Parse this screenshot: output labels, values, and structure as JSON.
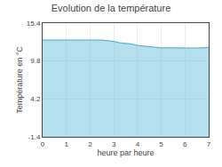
{
  "chart_data": {
    "type": "area",
    "title": "Evolution de la température",
    "xlabel": "heure par heure",
    "ylabel": "Température en °C",
    "x": [
      0,
      0.5,
      1.0,
      1.5,
      2.0,
      2.5,
      3.0,
      3.25,
      3.5,
      3.75,
      4.0,
      4.25,
      4.5,
      4.75,
      5.0,
      5.5,
      6.0,
      6.5,
      7.0
    ],
    "values": [
      12.9,
      12.9,
      12.9,
      12.9,
      12.9,
      12.9,
      12.7,
      12.5,
      12.4,
      12.3,
      12.1,
      12.0,
      11.9,
      11.8,
      11.75,
      11.75,
      11.7,
      11.7,
      11.8
    ],
    "color": "#5bb8d4",
    "xlim": [
      0,
      7
    ],
    "ylim": [
      -1.4,
      15.4
    ],
    "xticks": [
      0,
      1,
      2,
      3,
      4,
      5,
      6,
      7
    ],
    "yticks": [
      -1.4,
      4.2,
      9.8,
      15.4
    ],
    "grid": true
  }
}
